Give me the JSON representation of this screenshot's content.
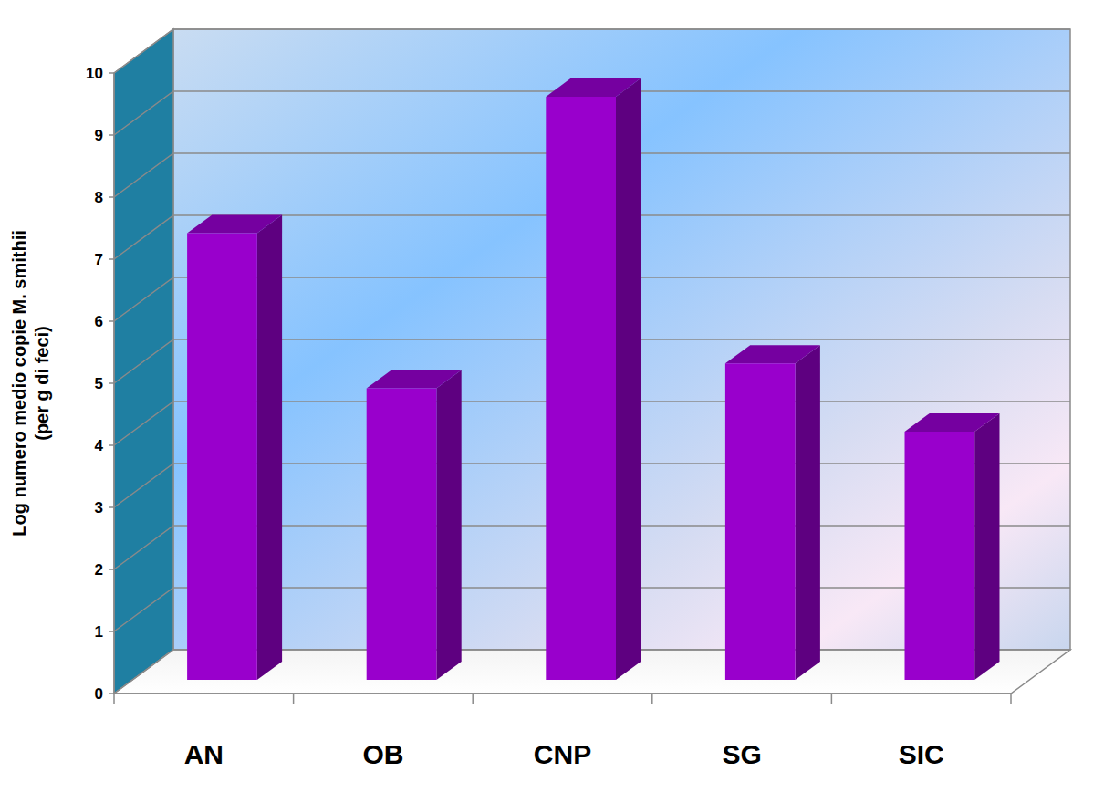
{
  "chart_data": {
    "type": "bar",
    "y_label": "Log numero medio copie M. smithii\n(per g di feci)",
    "categories": [
      "AN",
      "OB",
      "CNP",
      "SG",
      "SIC"
    ],
    "values": [
      7.2,
      4.7,
      9.4,
      5.1,
      4.0
    ],
    "color": "#9900cc",
    "ylim": [
      0,
      10
    ],
    "yticks": [
      0,
      1,
      2,
      3,
      4,
      5,
      6,
      7,
      8,
      9,
      10
    ],
    "grid": true
  }
}
